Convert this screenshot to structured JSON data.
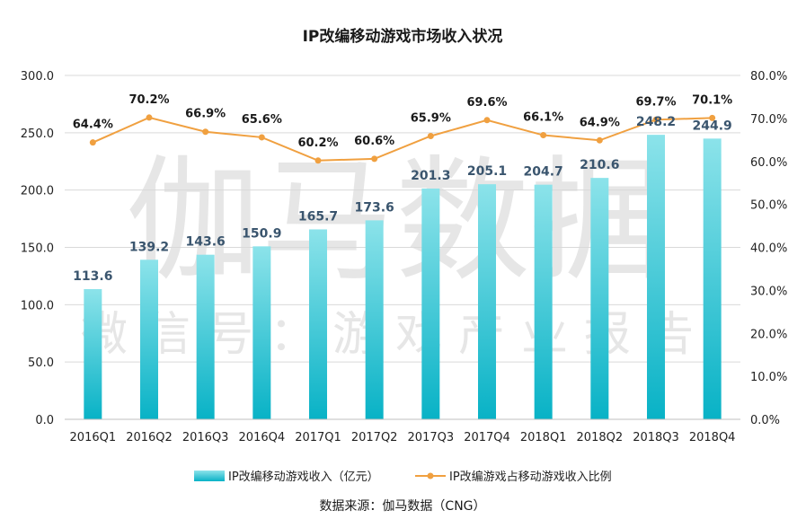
{
  "chart_data": {
    "type": "bar",
    "title": "IP改编移动游戏市场收入状况",
    "categories": [
      "2016Q1",
      "2016Q2",
      "2016Q3",
      "2016Q4",
      "2017Q1",
      "2017Q2",
      "2017Q3",
      "2017Q4",
      "2018Q1",
      "2018Q2",
      "2018Q3",
      "2018Q4"
    ],
    "series": [
      {
        "name": "IP改编移动游戏收入（亿元）",
        "type": "bar",
        "axis": "left",
        "values": [
          113.6,
          139.2,
          143.6,
          150.9,
          165.7,
          173.6,
          201.3,
          205.1,
          204.7,
          210.6,
          248.2,
          244.9
        ],
        "labels": [
          "113.6",
          "139.2",
          "143.6",
          "150.9",
          "165.7",
          "173.6",
          "201.3",
          "205.1",
          "204.7",
          "210.6",
          "248.2",
          "244.9"
        ],
        "color": "#1cb5c8"
      },
      {
        "name": "IP改编游戏占移动游戏收入比例",
        "type": "line",
        "axis": "right",
        "values": [
          64.4,
          70.2,
          66.9,
          65.6,
          60.2,
          60.6,
          65.9,
          69.6,
          66.1,
          64.9,
          69.7,
          70.1
        ],
        "labels": [
          "64.4%",
          "70.2%",
          "66.9%",
          "65.6%",
          "60.2%",
          "60.6%",
          "65.9%",
          "69.6%",
          "66.1%",
          "64.9%",
          "69.7%",
          "70.1%"
        ],
        "color": "#f0a040"
      }
    ],
    "y_left": {
      "min": 0,
      "max": 300,
      "ticks": [
        "0.0",
        "50.0",
        "100.0",
        "150.0",
        "200.0",
        "250.0",
        "300.0"
      ]
    },
    "y_right": {
      "min": 0,
      "max": 80,
      "ticks": [
        "0.0%",
        "10.0%",
        "20.0%",
        "30.0%",
        "40.0%",
        "50.0%",
        "60.0%",
        "70.0%",
        "80.0%"
      ]
    },
    "grid": true,
    "legend_position": "bottom"
  },
  "watermark": {
    "main": "伽马数据",
    "sub": "微信号：游戏产业报告"
  },
  "source": "数据来源：伽马数据（CNG）"
}
